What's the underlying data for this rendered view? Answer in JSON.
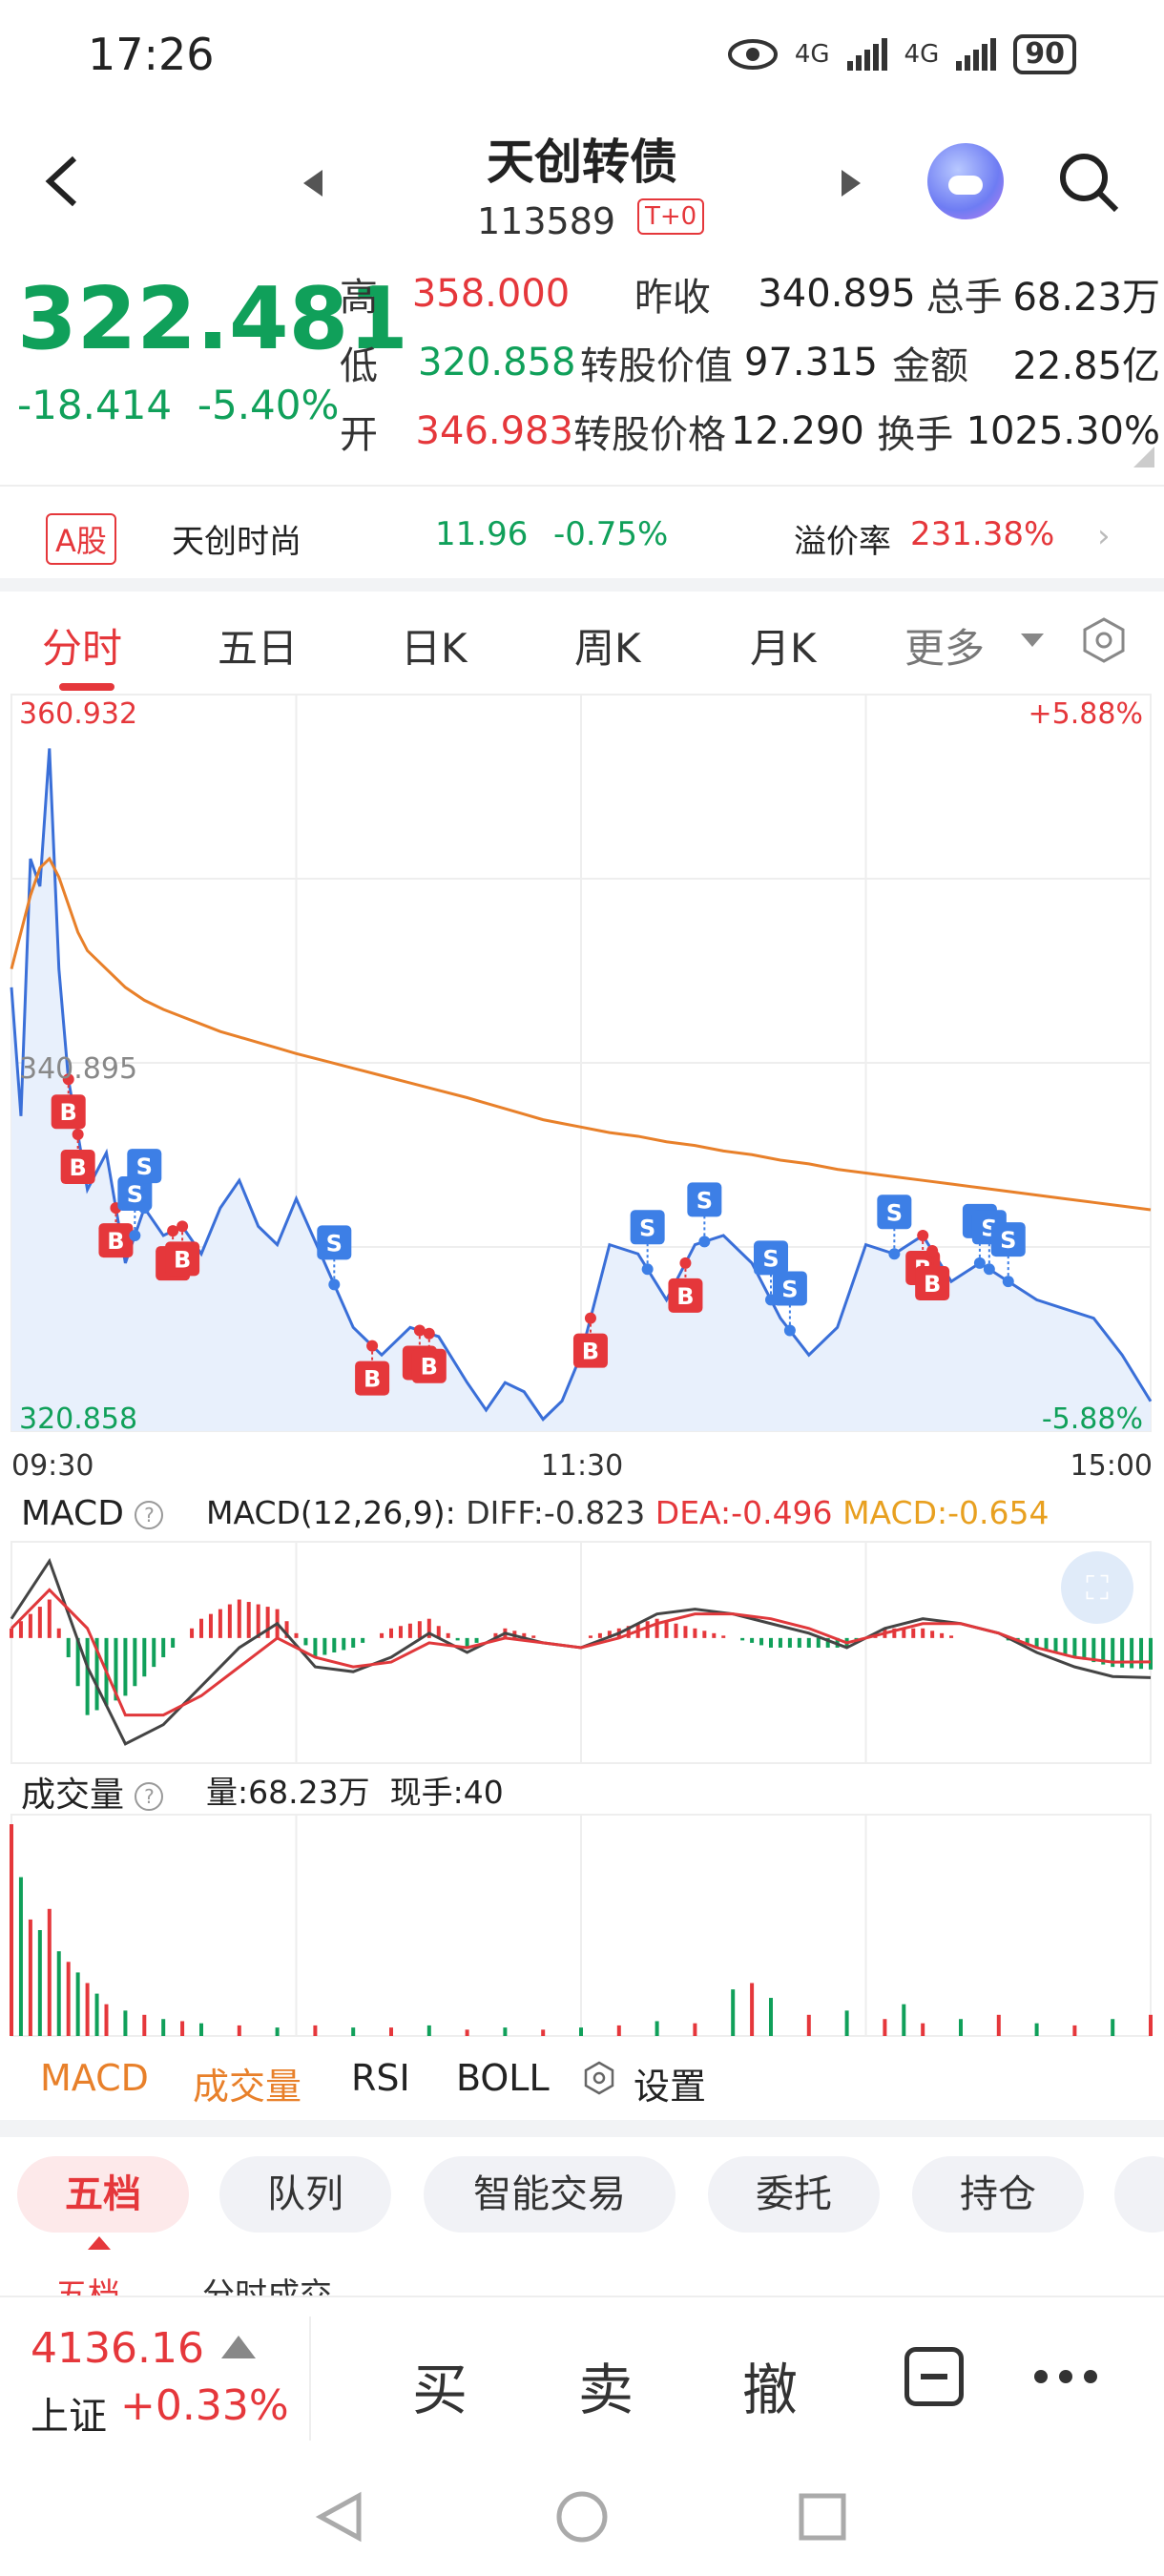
{
  "status_bar": {
    "time": "17:26",
    "net1": "4G",
    "net2": "4G",
    "battery": "90"
  },
  "header": {
    "title": "天创转债",
    "code": "113589",
    "tag": "T+0"
  },
  "quote": {
    "price": "322.481",
    "change": "-18.414",
    "change_pct": "-5.40%",
    "rows": [
      {
        "l1": "高",
        "v1": "358.000",
        "l2": "昨收",
        "v2": "340.895",
        "l3": "总手",
        "v3": "68.23万"
      },
      {
        "l1": "低",
        "v1": "320.858",
        "l2": "转股价值",
        "v2": "97.315",
        "l3": "金额",
        "v3": "22.85亿"
      },
      {
        "l1": "开",
        "v1": "346.983",
        "l2": "转股价格",
        "v2": "12.290",
        "l3": "换手",
        "v3": "1025.30%"
      }
    ]
  },
  "a_share": {
    "badge": "A股",
    "name": "天创时尚",
    "price": "11.96",
    "change_pct": "-0.75%",
    "premium_label": "溢价率",
    "premium_value": "231.38%"
  },
  "tabs": {
    "items": [
      "分时",
      "五日",
      "日K",
      "周K",
      "月K"
    ],
    "more": "更多"
  },
  "chart_data": [
    {
      "type": "line",
      "title": "",
      "y_top_label": "360.932",
      "y_mid_label": "340.895",
      "y_bottom_label": "320.858",
      "pct_top_label": "+5.88%",
      "pct_bottom_label": "-5.88%",
      "xlabels": [
        "09:30",
        "11:30",
        "15:00"
      ],
      "ylim": [
        320.858,
        360.932
      ],
      "x": [
        0,
        2,
        4,
        6,
        8,
        10,
        12,
        14,
        16,
        20,
        24,
        28,
        32,
        36,
        40,
        44,
        48,
        52,
        56,
        60,
        66,
        72,
        78,
        84,
        90,
        96,
        100,
        104,
        108,
        112,
        116,
        120,
        126,
        132,
        138,
        144,
        150,
        156,
        162,
        168,
        174,
        180,
        186,
        192,
        198,
        204,
        210,
        216,
        222,
        228,
        234,
        240
      ],
      "series": [
        {
          "values": [
            345.0,
            338.0,
            352.0,
            350.5,
            358.0,
            346.0,
            340.0,
            337.0,
            334.0,
            336.0,
            330.0,
            333.0,
            331.5,
            332.0,
            330.5,
            333.0,
            334.5,
            332.0,
            331.0,
            333.5,
            330.0,
            326.5,
            325.0,
            326.5,
            326.0,
            323.5,
            322.0,
            323.5,
            323.0,
            321.5,
            322.5,
            325.0,
            331.0,
            330.5,
            328.0,
            331.0,
            331.5,
            330.0,
            327.0,
            325.0,
            326.5,
            331.0,
            330.5,
            331.5,
            329.0,
            330.0,
            329.0,
            328.0,
            327.5,
            327.0,
            325.0,
            322.481
          ]
        },
        {
          "values": [
            346.0,
            348.0,
            350.0,
            351.5,
            352.0,
            351.0,
            349.5,
            348.0,
            347.0,
            346.0,
            345.0,
            344.3,
            343.8,
            343.4,
            343.0,
            342.6,
            342.3,
            342.0,
            341.7,
            341.4,
            341.0,
            340.6,
            340.2,
            339.8,
            339.4,
            339.0,
            338.7,
            338.4,
            338.1,
            337.8,
            337.6,
            337.4,
            337.1,
            336.9,
            336.6,
            336.4,
            336.1,
            335.9,
            335.6,
            335.4,
            335.1,
            334.9,
            334.7,
            334.5,
            334.3,
            334.1,
            333.9,
            333.7,
            333.5,
            333.3,
            333.1,
            332.9
          ]
        }
      ],
      "markers": [
        {
          "x": 12,
          "label": "B",
          "kind": "buy"
        },
        {
          "x": 14,
          "label": "B",
          "kind": "buy"
        },
        {
          "x": 22,
          "label": "B",
          "kind": "buy"
        },
        {
          "x": 34,
          "label": "B",
          "kind": "buy"
        },
        {
          "x": 36,
          "label": "B",
          "kind": "buy"
        },
        {
          "x": 26,
          "label": "S",
          "kind": "sell"
        },
        {
          "x": 28,
          "label": "S",
          "kind": "sell"
        },
        {
          "x": 68,
          "label": "S",
          "kind": "sell"
        },
        {
          "x": 76,
          "label": "B",
          "kind": "buy"
        },
        {
          "x": 86,
          "label": "B",
          "kind": "buy"
        },
        {
          "x": 88,
          "label": "B",
          "kind": "buy"
        },
        {
          "x": 122,
          "label": "B",
          "kind": "buy"
        },
        {
          "x": 134,
          "label": "S",
          "kind": "sell"
        },
        {
          "x": 142,
          "label": "B",
          "kind": "buy"
        },
        {
          "x": 146,
          "label": "S",
          "kind": "sell"
        },
        {
          "x": 160,
          "label": "S",
          "kind": "sell"
        },
        {
          "x": 164,
          "label": "S",
          "kind": "sell"
        },
        {
          "x": 186,
          "label": "S",
          "kind": "sell"
        },
        {
          "x": 192,
          "label": "B",
          "kind": "buy"
        },
        {
          "x": 194,
          "label": "B",
          "kind": "buy"
        },
        {
          "x": 204,
          "label": "S",
          "kind": "sell"
        },
        {
          "x": 206,
          "label": "S",
          "kind": "sell"
        },
        {
          "x": 210,
          "label": "S",
          "kind": "sell"
        }
      ]
    },
    {
      "type": "bar",
      "title": "MACD",
      "params": "MACD(12,26,9):",
      "diff_label": "DIFF:-0.823",
      "dea_label": "DEA:-0.496",
      "macd_label": "MACD:-0.654",
      "x": [
        0,
        8,
        16,
        24,
        32,
        40,
        48,
        56,
        64,
        72,
        80,
        88,
        96,
        104,
        112,
        120,
        128,
        136,
        144,
        152,
        160,
        168,
        176,
        184,
        192,
        200,
        208,
        216,
        224,
        232,
        240
      ],
      "series": [
        {
          "name": "DIFF",
          "values": [
            0.4,
            1.6,
            -0.6,
            -2.2,
            -1.8,
            -1.0,
            -0.2,
            0.3,
            -0.6,
            -0.7,
            -0.4,
            0.1,
            -0.3,
            0.1,
            -0.1,
            -0.2,
            0.1,
            0.5,
            0.6,
            0.5,
            0.3,
            0.1,
            -0.2,
            0.2,
            0.4,
            0.3,
            0.1,
            -0.3,
            -0.6,
            -0.8,
            -0.823
          ]
        },
        {
          "name": "DEA",
          "values": [
            0.2,
            1.0,
            0.2,
            -1.6,
            -1.6,
            -1.2,
            -0.6,
            0.0,
            -0.4,
            -0.6,
            -0.5,
            -0.1,
            -0.2,
            0.0,
            -0.1,
            -0.2,
            0.0,
            0.3,
            0.5,
            0.5,
            0.4,
            0.2,
            -0.1,
            0.1,
            0.3,
            0.3,
            0.1,
            -0.2,
            -0.4,
            -0.5,
            -0.496
          ]
        },
        {
          "name": "MACD",
          "values": [
            0.2,
            0.8,
            -1.6,
            -1.2,
            -0.4,
            0.4,
            0.8,
            0.6,
            -0.4,
            -0.2,
            0.2,
            0.4,
            -0.2,
            0.2,
            0.0,
            0.0,
            0.2,
            0.4,
            0.2,
            0.0,
            -0.2,
            -0.2,
            -0.2,
            0.2,
            0.2,
            0.0,
            0.0,
            -0.2,
            -0.4,
            -0.6,
            -0.654
          ]
        }
      ]
    },
    {
      "type": "bar",
      "title": "成交量",
      "volume_label": "量:68.23万",
      "last_trade_label": "现手:40",
      "x": [
        0,
        2,
        4,
        6,
        8,
        10,
        12,
        14,
        16,
        18,
        20,
        24,
        28,
        32,
        36,
        40,
        48,
        56,
        64,
        72,
        80,
        88,
        96,
        104,
        112,
        120,
        128,
        136,
        144,
        152,
        156,
        160,
        168,
        176,
        184,
        188,
        192,
        200,
        208,
        216,
        224,
        232,
        240
      ],
      "values": [
        1.0,
        0.75,
        0.55,
        0.5,
        0.6,
        0.4,
        0.35,
        0.3,
        0.25,
        0.2,
        0.15,
        0.12,
        0.1,
        0.08,
        0.07,
        0.06,
        0.05,
        0.04,
        0.05,
        0.04,
        0.04,
        0.05,
        0.03,
        0.04,
        0.03,
        0.04,
        0.05,
        0.07,
        0.06,
        0.22,
        0.25,
        0.18,
        0.1,
        0.12,
        0.08,
        0.15,
        0.06,
        0.08,
        0.1,
        0.06,
        0.05,
        0.08,
        0.1
      ]
    }
  ],
  "indicator_tabs": [
    "MACD",
    "成交量",
    "RSI",
    "BOLL",
    "设置"
  ],
  "bottom_tabs": [
    "五档",
    "队列",
    "智能交易",
    "委托",
    "持仓"
  ],
  "sub_tabs": [
    "五档",
    "分时成交"
  ],
  "footer": {
    "index_value": "4136.16",
    "index_name": "上证",
    "index_change": "+0.33%",
    "actions": [
      "买",
      "卖",
      "撤"
    ]
  },
  "colors": {
    "up": "#e5373b",
    "down": "#10a05a",
    "price_line": "#3a6fd8",
    "avg_line": "#e8802a",
    "dea": "#e0383b",
    "diff": "#444444",
    "sell_marker": "#3d7fe6"
  }
}
